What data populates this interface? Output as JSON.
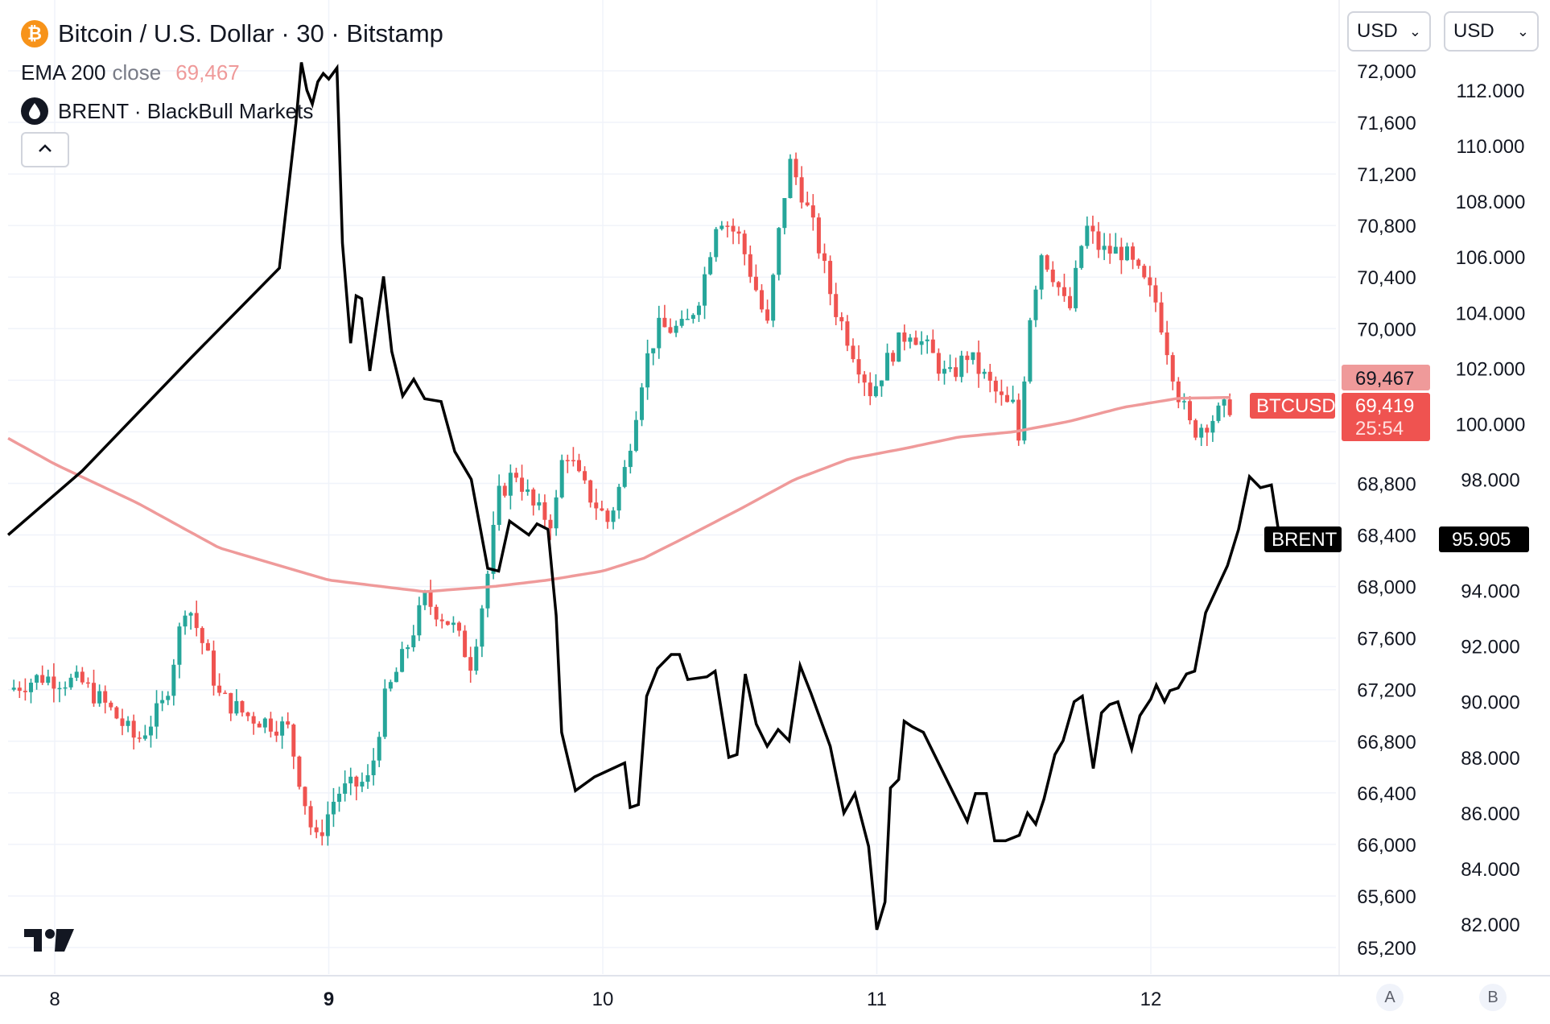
{
  "header": {
    "title": "Bitcoin / U.S. Dollar · 30 · Bitstamp",
    "ema_label": "EMA 200",
    "ema_source": "close",
    "ema_value": "69,467",
    "brent_label": "BRENT · BlackBull Markets",
    "collapse_icon": "chevron-up-icon"
  },
  "currency_selectors": {
    "a": "USD",
    "b": "USD"
  },
  "price_scale_a": {
    "ticks": [
      "72,000",
      "71,600",
      "71,200",
      "70,800",
      "70,400",
      "70,000",
      "68,800",
      "68,400",
      "68,000",
      "67,600",
      "67,200",
      "66,800",
      "66,400",
      "66,000",
      "65,600",
      "65,200"
    ],
    "ema_tag": "69,467",
    "last_price_tag": "69,419",
    "countdown": "25:54",
    "symbol_tag": "BTCUSD",
    "brent_symbol_tag": "BRENT"
  },
  "price_scale_b": {
    "ticks": [
      "112.000",
      "110.000",
      "108.000",
      "106.000",
      "104.000",
      "102.000",
      "100.000",
      "98.000",
      "94.000",
      "92.000",
      "90.000",
      "88.000",
      "86.000",
      "84.000",
      "82.000"
    ],
    "last_price_tag": "95.905"
  },
  "time_axis": {
    "labels": [
      "8",
      "9",
      "10",
      "11",
      "12"
    ],
    "bold": "9"
  },
  "scale_buttons": {
    "a": "A",
    "b": "B"
  },
  "colors": {
    "up": "#26a69a",
    "down": "#ef5350",
    "ema": "#ef9a9a",
    "brent": "#000000",
    "grid": "#f0f3fa"
  },
  "chart_data": {
    "type": "candlestick",
    "timeframe": "30",
    "x_axis": {
      "type": "day",
      "labels": [
        8,
        9,
        10,
        11,
        12
      ],
      "range": [
        7.83,
        12.3
      ]
    },
    "y_axis_a": {
      "ylim": [
        65100,
        72200
      ]
    },
    "y_axis_b": {
      "ylim": [
        81.0,
        113.2
      ]
    },
    "btc_anchors": [
      [
        7.83,
        67200
      ],
      [
        7.95,
        67300
      ],
      [
        8.1,
        67250
      ],
      [
        8.2,
        67050
      ],
      [
        8.3,
        66800
      ],
      [
        8.4,
        67100
      ],
      [
        8.48,
        67900
      ],
      [
        8.55,
        67500
      ],
      [
        8.6,
        67150
      ],
      [
        8.7,
        67000
      ],
      [
        8.85,
        66900
      ],
      [
        8.95,
        66000
      ],
      [
        9.03,
        66400
      ],
      [
        9.15,
        66500
      ],
      [
        9.2,
        67100
      ],
      [
        9.28,
        67500
      ],
      [
        9.35,
        67900
      ],
      [
        9.45,
        67700
      ],
      [
        9.52,
        67400
      ],
      [
        9.58,
        68100
      ],
      [
        9.62,
        68700
      ],
      [
        9.68,
        68900
      ],
      [
        9.75,
        68600
      ],
      [
        9.82,
        68500
      ],
      [
        9.86,
        69100
      ],
      [
        9.92,
        68800
      ],
      [
        10.02,
        68500
      ],
      [
        10.08,
        68900
      ],
      [
        10.15,
        69700
      ],
      [
        10.2,
        70000
      ],
      [
        10.3,
        70000
      ],
      [
        10.36,
        70300
      ],
      [
        10.42,
        70900
      ],
      [
        10.5,
        70700
      ],
      [
        10.56,
        70300
      ],
      [
        10.6,
        70000
      ],
      [
        10.64,
        70700
      ],
      [
        10.68,
        71300
      ],
      [
        10.72,
        71100
      ],
      [
        10.78,
        70700
      ],
      [
        10.84,
        70200
      ],
      [
        10.9,
        69900
      ],
      [
        10.98,
        69500
      ],
      [
        11.05,
        69800
      ],
      [
        11.12,
        70000
      ],
      [
        11.2,
        69800
      ],
      [
        11.26,
        69600
      ],
      [
        11.33,
        69800
      ],
      [
        11.4,
        69600
      ],
      [
        11.47,
        69400
      ],
      [
        11.5,
        69400
      ],
      [
        11.52,
        69100
      ],
      [
        11.55,
        70000
      ],
      [
        11.6,
        70600
      ],
      [
        11.65,
        70400
      ],
      [
        11.7,
        70100
      ],
      [
        11.76,
        70800
      ],
      [
        11.82,
        70600
      ],
      [
        11.9,
        70600
      ],
      [
        11.96,
        70400
      ],
      [
        12.02,
        70200
      ],
      [
        12.1,
        69500
      ],
      [
        12.15,
        69200
      ],
      [
        12.22,
        69300
      ],
      [
        12.3,
        69420
      ]
    ],
    "ema200_close": [
      [
        7.83,
        69150
      ],
      [
        8.0,
        68950
      ],
      [
        8.3,
        68650
      ],
      [
        8.6,
        68300
      ],
      [
        9.0,
        68050
      ],
      [
        9.35,
        67960
      ],
      [
        9.6,
        68000
      ],
      [
        9.8,
        68050
      ],
      [
        10.0,
        68120
      ],
      [
        10.15,
        68220
      ],
      [
        10.3,
        68380
      ],
      [
        10.5,
        68600
      ],
      [
        10.7,
        68830
      ],
      [
        10.9,
        68990
      ],
      [
        11.1,
        69070
      ],
      [
        11.3,
        69160
      ],
      [
        11.5,
        69200
      ],
      [
        11.7,
        69280
      ],
      [
        11.9,
        69390
      ],
      [
        12.1,
        69460
      ],
      [
        12.3,
        69467
      ]
    ],
    "brent": [
      [
        7.83,
        96.0
      ],
      [
        8.1,
        98.3
      ],
      [
        8.5,
        102.4
      ],
      [
        8.82,
        105.6
      ],
      [
        8.88,
        110.8
      ],
      [
        8.9,
        113.0
      ],
      [
        8.92,
        112.0
      ],
      [
        8.94,
        111.5
      ],
      [
        8.96,
        112.3
      ],
      [
        8.98,
        112.6
      ],
      [
        9.0,
        112.4
      ],
      [
        9.03,
        112.8
      ],
      [
        9.05,
        106.5
      ],
      [
        9.08,
        102.9
      ],
      [
        9.1,
        104.6
      ],
      [
        9.12,
        104.5
      ],
      [
        9.15,
        101.9
      ],
      [
        9.2,
        105.3
      ],
      [
        9.23,
        102.6
      ],
      [
        9.27,
        101.0
      ],
      [
        9.31,
        101.6
      ],
      [
        9.35,
        100.9
      ],
      [
        9.41,
        100.8
      ],
      [
        9.46,
        99.0
      ],
      [
        9.52,
        98.0
      ],
      [
        9.58,
        94.8
      ],
      [
        9.62,
        94.7
      ],
      [
        9.66,
        96.5
      ],
      [
        9.73,
        96.0
      ],
      [
        9.76,
        96.4
      ],
      [
        9.8,
        96.2
      ],
      [
        9.83,
        93.1
      ],
      [
        9.85,
        88.9
      ],
      [
        9.9,
        86.8
      ],
      [
        9.97,
        87.3
      ],
      [
        10.08,
        87.8
      ],
      [
        10.1,
        86.2
      ],
      [
        10.13,
        86.3
      ],
      [
        10.16,
        90.2
      ],
      [
        10.2,
        91.2
      ],
      [
        10.25,
        91.7
      ],
      [
        10.28,
        91.7
      ],
      [
        10.31,
        90.8
      ],
      [
        10.38,
        90.9
      ],
      [
        10.41,
        91.1
      ],
      [
        10.46,
        88.0
      ],
      [
        10.49,
        88.1
      ],
      [
        10.52,
        91.0
      ],
      [
        10.56,
        89.2
      ],
      [
        10.6,
        88.4
      ],
      [
        10.64,
        89.0
      ],
      [
        10.68,
        88.6
      ],
      [
        10.72,
        91.3
      ],
      [
        10.76,
        90.3
      ],
      [
        10.83,
        88.4
      ],
      [
        10.88,
        86.0
      ],
      [
        10.92,
        86.7
      ],
      [
        10.97,
        84.8
      ],
      [
        11.0,
        81.8
      ],
      [
        11.03,
        82.8
      ],
      [
        11.05,
        86.9
      ],
      [
        11.08,
        87.2
      ],
      [
        11.1,
        89.3
      ],
      [
        11.13,
        89.1
      ],
      [
        11.17,
        88.9
      ],
      [
        11.33,
        85.7
      ],
      [
        11.36,
        86.7
      ],
      [
        11.4,
        86.7
      ],
      [
        11.43,
        85.0
      ],
      [
        11.47,
        85.0
      ],
      [
        11.52,
        85.2
      ],
      [
        11.55,
        86.0
      ],
      [
        11.58,
        85.6
      ],
      [
        11.61,
        86.5
      ],
      [
        11.65,
        88.1
      ],
      [
        11.68,
        88.6
      ],
      [
        11.72,
        90.0
      ],
      [
        11.75,
        90.2
      ],
      [
        11.79,
        87.6
      ],
      [
        11.82,
        89.6
      ],
      [
        11.85,
        89.9
      ],
      [
        11.88,
        90.0
      ],
      [
        11.93,
        88.3
      ],
      [
        11.96,
        89.5
      ],
      [
        12.0,
        90.1
      ],
      [
        12.02,
        90.6
      ],
      [
        12.05,
        90.0
      ],
      [
        12.07,
        90.4
      ],
      [
        12.1,
        90.5
      ],
      [
        12.13,
        91.0
      ],
      [
        12.16,
        91.1
      ],
      [
        12.2,
        93.2
      ],
      [
        12.28,
        94.9
      ],
      [
        12.32,
        96.2
      ],
      [
        12.36,
        98.1
      ],
      [
        12.4,
        97.7
      ],
      [
        12.44,
        97.8
      ],
      [
        12.47,
        95.9
      ],
      [
        12.5,
        95.905
      ]
    ]
  }
}
